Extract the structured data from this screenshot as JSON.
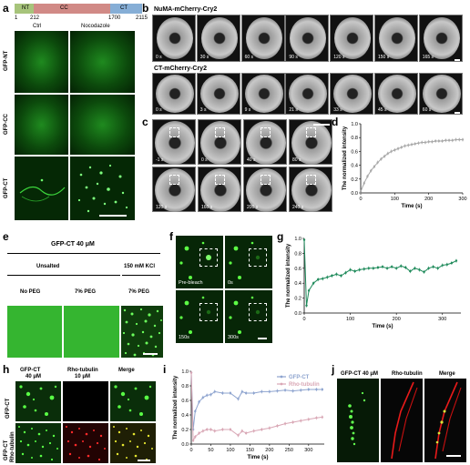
{
  "panel_a": {
    "letter": "a",
    "domains": [
      "NT",
      "CC",
      "CT"
    ],
    "positions": [
      "1",
      "212",
      "1700",
      "2115"
    ],
    "col_labels": [
      "Ctrl",
      "Nocodazole"
    ],
    "row_labels": [
      "GFP-NT",
      "GFP-CC",
      "GFP-CT"
    ]
  },
  "panel_b": {
    "letter": "b",
    "row1_label": "NuMA-mCherry-Cry2",
    "row1_times": [
      "0 s",
      "30 s",
      "60 s",
      "90 s",
      "120 s",
      "150 s",
      "165 s"
    ],
    "row2_label": "CT-mCherry-Cry2",
    "row2_times": [
      "0 s",
      "3 s",
      "9 s",
      "21 s",
      "33 s",
      "45 s",
      "60 s"
    ]
  },
  "panel_c": {
    "letter": "c",
    "times": [
      "-1 s",
      "0 s",
      "40 s",
      "80 s",
      "120 s",
      "160 s",
      "200 s",
      "240 s"
    ]
  },
  "panel_e": {
    "letter": "e",
    "header": "GFP-CT 40 μM",
    "group1": "Unsalted",
    "group2": "150 mM KCl",
    "conditions": [
      "No PEG",
      "7% PEG",
      "7% PEG"
    ]
  },
  "panel_f": {
    "letter": "f",
    "times": [
      "Pre-bleach",
      "0s",
      "150s",
      "300s"
    ]
  },
  "panel_h": {
    "letter": "h",
    "col_labels": [
      "GFP-CT",
      "Rho-tubulin",
      "Merge"
    ],
    "col_conc": [
      "40 μM",
      "10 μM"
    ],
    "row_labels": [
      "GFP-CT",
      "GFP-CT"
    ],
    "row2_sub": "Rho-tubulin"
  },
  "panel_j": {
    "letter": "j",
    "col_labels": [
      "GFP-CT 40 μM",
      "Rho-tubulin",
      "Merge"
    ]
  },
  "chart_data": [
    {
      "panel": "d",
      "type": "line",
      "xlabel": "Time (s)",
      "ylabel": "The normalized intensity",
      "xlim": [
        0,
        300
      ],
      "ylim": [
        0,
        1.0
      ],
      "xticks": [
        "0",
        "100",
        "200",
        "300"
      ],
      "yticks": [
        "0.0",
        "0.2",
        "0.4",
        "0.6",
        "0.8",
        "1.0"
      ],
      "color": "#a9a9a9",
      "series": [
        {
          "x": [
            0,
            10,
            20,
            30,
            40,
            50,
            60,
            70,
            80,
            90,
            100,
            110,
            120,
            130,
            140,
            150,
            160,
            170,
            180,
            190,
            200,
            210,
            220,
            230,
            240,
            250,
            260,
            270,
            280,
            290,
            300
          ],
          "y": [
            0.02,
            0.14,
            0.24,
            0.32,
            0.38,
            0.44,
            0.49,
            0.53,
            0.57,
            0.6,
            0.62,
            0.64,
            0.66,
            0.68,
            0.69,
            0.7,
            0.71,
            0.72,
            0.73,
            0.73,
            0.74,
            0.74,
            0.75,
            0.75,
            0.75,
            0.76,
            0.76,
            0.76,
            0.77,
            0.77,
            0.77
          ]
        }
      ]
    },
    {
      "panel": "g",
      "type": "line",
      "xlabel": "Time (s)",
      "ylabel": "The normalized intensity",
      "xlim": [
        0,
        340
      ],
      "ylim": [
        0,
        1.0
      ],
      "xticks": [
        "0",
        "100",
        "200",
        "300"
      ],
      "yticks": [
        "0.0",
        "0.2",
        "0.4",
        "0.6",
        "0.8",
        "1.0"
      ],
      "color": "#1e8a5a",
      "series": [
        {
          "x": [
            0,
            5,
            10,
            20,
            30,
            40,
            50,
            60,
            70,
            80,
            90,
            100,
            110,
            120,
            130,
            140,
            150,
            160,
            170,
            180,
            190,
            200,
            210,
            220,
            230,
            240,
            250,
            260,
            270,
            280,
            290,
            300,
            310,
            320,
            330
          ],
          "y": [
            0.98,
            0.1,
            0.3,
            0.4,
            0.45,
            0.46,
            0.48,
            0.5,
            0.52,
            0.5,
            0.54,
            0.58,
            0.56,
            0.58,
            0.59,
            0.6,
            0.6,
            0.61,
            0.62,
            0.6,
            0.62,
            0.6,
            0.63,
            0.61,
            0.56,
            0.6,
            0.58,
            0.55,
            0.6,
            0.62,
            0.6,
            0.64,
            0.65,
            0.67,
            0.7
          ]
        }
      ]
    },
    {
      "panel": "i",
      "type": "line",
      "xlabel": "Time (s)",
      "ylabel": "The normalized intensity",
      "xlim": [
        0,
        340
      ],
      "ylim": [
        0,
        1.0
      ],
      "xticks": [
        "0",
        "50",
        "100",
        "150",
        "200",
        "250",
        "300"
      ],
      "yticks": [
        "0.0",
        "0.2",
        "0.4",
        "0.6",
        "0.8",
        "1.0"
      ],
      "legend": "top-right",
      "series": [
        {
          "name": "GFP-CT",
          "color": "#8ea4cf",
          "x": [
            0,
            5,
            10,
            20,
            30,
            40,
            50,
            60,
            80,
            100,
            120,
            130,
            140,
            160,
            180,
            200,
            220,
            240,
            260,
            280,
            300,
            320,
            335
          ],
          "y": [
            0.98,
            0.2,
            0.45,
            0.58,
            0.64,
            0.67,
            0.68,
            0.72,
            0.7,
            0.7,
            0.62,
            0.72,
            0.7,
            0.7,
            0.72,
            0.72,
            0.73,
            0.74,
            0.73,
            0.74,
            0.75,
            0.75,
            0.75
          ]
        },
        {
          "name": "Rho-tubulin",
          "color": "#d9a7b5",
          "x": [
            0,
            5,
            10,
            20,
            30,
            40,
            50,
            60,
            80,
            100,
            120,
            130,
            140,
            160,
            180,
            200,
            220,
            240,
            260,
            280,
            300,
            320,
            335
          ],
          "y": [
            0.98,
            0.05,
            0.1,
            0.15,
            0.18,
            0.2,
            0.2,
            0.18,
            0.2,
            0.2,
            0.12,
            0.18,
            0.15,
            0.18,
            0.2,
            0.22,
            0.25,
            0.28,
            0.3,
            0.32,
            0.34,
            0.36,
            0.37
          ]
        }
      ]
    }
  ]
}
